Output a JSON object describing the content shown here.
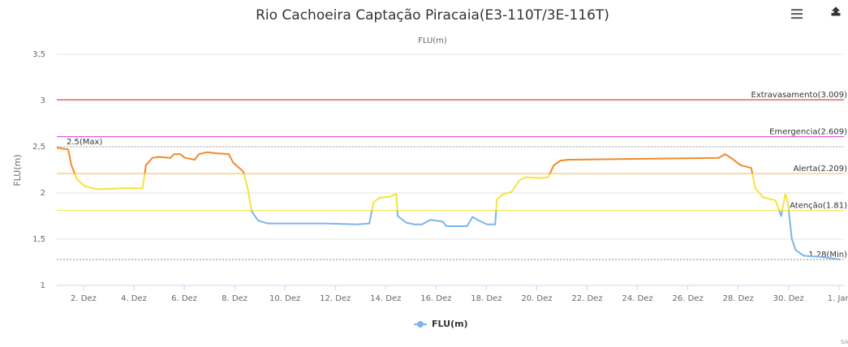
{
  "chart_data": {
    "type": "line",
    "title": "Rio Cachoeira Captação Piracaia(E3-110T/3E-116T)",
    "subtitle": "FLU(m)",
    "y_axis_label": "FLU(m)",
    "credits": "SAI",
    "xlim": [
      0.94,
      32.2
    ],
    "xticks": [
      {
        "value": 2,
        "label": "2. Dez"
      },
      {
        "value": 4,
        "label": "4. Dez"
      },
      {
        "value": 6,
        "label": "6. Dez"
      },
      {
        "value": 8,
        "label": "8. Dez"
      },
      {
        "value": 10,
        "label": "10. Dez"
      },
      {
        "value": 12,
        "label": "12. Dez"
      },
      {
        "value": 14,
        "label": "14. Dez"
      },
      {
        "value": 16,
        "label": "16. Dez"
      },
      {
        "value": 18,
        "label": "18. Dez"
      },
      {
        "value": 20,
        "label": "20. Dez"
      },
      {
        "value": 22,
        "label": "22. Dez"
      },
      {
        "value": 24,
        "label": "24. Dez"
      },
      {
        "value": 26,
        "label": "26. Dez"
      },
      {
        "value": 28,
        "label": "28. Dez"
      },
      {
        "value": 30,
        "label": "30. Dez"
      },
      {
        "value": 32,
        "label": "1. Jan"
      }
    ],
    "ylim": [
      1,
      3.5
    ],
    "yticks": [
      1,
      {
        "value": 1.5,
        "label": "1,5"
      },
      2,
      {
        "value": 2.5,
        "label": "2,5"
      },
      3,
      {
        "value": 3.5,
        "label": "3,5"
      }
    ],
    "grid": true,
    "plot_lines": [
      {
        "value": 3.009,
        "label": "Extravasamento(3.009)",
        "color": "#e0302e",
        "style": "solid",
        "align": "right"
      },
      {
        "value": 2.609,
        "label": "Emergencia(2.609)",
        "color": "#d63fd6",
        "style": "solid",
        "align": "right"
      },
      {
        "value": 2.5,
        "label": "2.5(Max)",
        "color": "#aaaaaa",
        "style": "dotted",
        "align": "left"
      },
      {
        "value": 2.209,
        "label": "Alerta(2.209)",
        "color": "#f7b45a",
        "style": "solid",
        "align": "right"
      },
      {
        "value": 1.81,
        "label": "Atenção(1.81)",
        "color": "#f2e23a",
        "style": "solid",
        "align": "right"
      },
      {
        "value": 1.28,
        "label": "1.28(Min)",
        "color": "#888888",
        "style": "dotted",
        "align": "right"
      }
    ],
    "zones": [
      {
        "upto": 1.81,
        "color": "#7cb5ec"
      },
      {
        "upto": 2.209,
        "color": "#f5e43a"
      },
      {
        "color": "#f08a2a"
      }
    ],
    "legend": "bottom",
    "series": [
      {
        "name": "FLU(m)",
        "color": "#7cb5ec",
        "x": [
          0.94,
          1.39,
          1.52,
          1.74,
          2.06,
          2.55,
          3.52,
          4.35,
          4.48,
          4.74,
          4.97,
          5.45,
          5.61,
          5.84,
          6.03,
          6.42,
          6.58,
          6.9,
          7.23,
          7.77,
          7.94,
          8.35,
          8.52,
          8.68,
          8.94,
          9.32,
          11.58,
          12.87,
          13.35,
          13.52,
          13.77,
          14.16,
          14.42,
          14.48,
          14.81,
          15.13,
          15.45,
          15.77,
          16.26,
          16.42,
          17.23,
          17.45,
          17.71,
          18.03,
          18.35,
          18.42,
          18.68,
          19.0,
          19.32,
          19.58,
          20.13,
          20.45,
          20.68,
          20.94,
          21.26,
          24.48,
          27.23,
          27.48,
          27.71,
          28.1,
          28.52,
          28.68,
          29.0,
          29.48,
          29.71,
          29.87,
          29.97,
          30.13,
          30.29,
          30.61,
          31.26,
          32.06
        ],
        "values": [
          2.49,
          2.47,
          2.3,
          2.15,
          2.07,
          2.04,
          2.05,
          2.05,
          2.3,
          2.38,
          2.39,
          2.38,
          2.42,
          2.42,
          2.38,
          2.36,
          2.42,
          2.44,
          2.43,
          2.42,
          2.33,
          2.23,
          2.05,
          1.8,
          1.7,
          1.67,
          1.67,
          1.66,
          1.67,
          1.9,
          1.95,
          1.96,
          1.99,
          1.75,
          1.68,
          1.66,
          1.66,
          1.71,
          1.69,
          1.64,
          1.64,
          1.74,
          1.7,
          1.66,
          1.66,
          1.93,
          1.99,
          2.01,
          2.14,
          2.17,
          2.16,
          2.17,
          2.3,
          2.35,
          2.36,
          2.37,
          2.38,
          2.42,
          2.38,
          2.3,
          2.27,
          2.05,
          1.95,
          1.92,
          1.75,
          1.99,
          1.9,
          1.5,
          1.38,
          1.32,
          1.31,
          1.28
        ]
      }
    ]
  }
}
